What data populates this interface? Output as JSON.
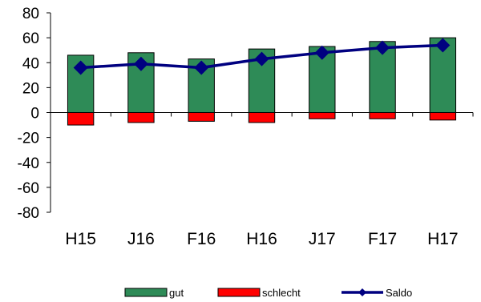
{
  "chart_data": {
    "type": "bar",
    "categories": [
      "H15",
      "J16",
      "F16",
      "H16",
      "J17",
      "F17",
      "H17"
    ],
    "series": [
      {
        "name": "gut",
        "kind": "bar",
        "color": "#2e8b57",
        "values": [
          46,
          48,
          43,
          51,
          53,
          57,
          60
        ]
      },
      {
        "name": "schlecht",
        "kind": "bar",
        "color": "#ff0000",
        "values": [
          -10,
          -8,
          -7,
          -8,
          -5,
          -5,
          -6
        ]
      },
      {
        "name": "Saldo",
        "kind": "line",
        "color": "#000080",
        "marker": "diamond",
        "values": [
          36,
          39,
          36,
          43,
          48,
          52,
          54
        ]
      }
    ],
    "yticks": [
      "80",
      "60",
      "40",
      "20",
      "0",
      "-20",
      "-40",
      "-60",
      "-80"
    ],
    "ylim": [
      -80,
      80
    ],
    "grid": false,
    "legend": "bottom"
  }
}
